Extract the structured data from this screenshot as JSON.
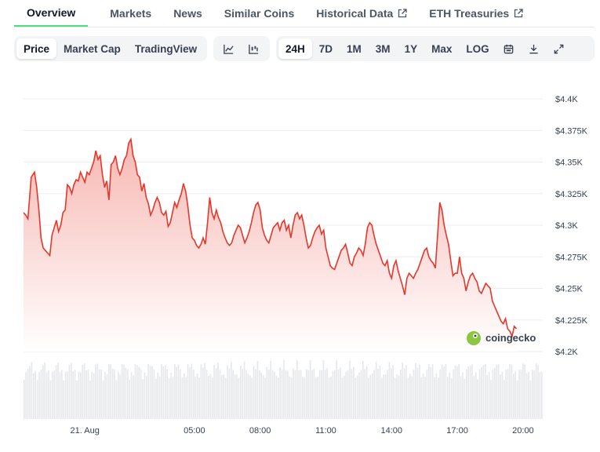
{
  "tabs": [
    {
      "label": "Overview",
      "active": true,
      "external": false
    },
    {
      "label": "Markets",
      "active": false,
      "external": false
    },
    {
      "label": "News",
      "active": false,
      "external": false
    },
    {
      "label": "Similar Coins",
      "active": false,
      "external": false
    },
    {
      "label": "Historical Data",
      "active": false,
      "external": true
    },
    {
      "label": "ETH Treasuries",
      "active": false,
      "external": true
    }
  ],
  "toolbar": {
    "view_buttons": [
      {
        "label": "Price",
        "selected": true
      },
      {
        "label": "Market Cap",
        "selected": false
      },
      {
        "label": "TradingView",
        "selected": false
      }
    ],
    "chart_type_icons": [
      "line-chart-icon",
      "candlestick-chart-icon"
    ],
    "range_buttons": [
      {
        "label": "24H",
        "selected": true
      },
      {
        "label": "7D",
        "selected": false
      },
      {
        "label": "1M",
        "selected": false
      },
      {
        "label": "3M",
        "selected": false
      },
      {
        "label": "1Y",
        "selected": false
      },
      {
        "label": "Max",
        "selected": false
      },
      {
        "label": "LOG",
        "selected": false
      }
    ],
    "action_icons": [
      "calendar-icon",
      "download-icon",
      "fullscreen-icon"
    ]
  },
  "watermark": "coingecko",
  "colors": {
    "line": "#e5372b",
    "fill_top": "#f7b7b2",
    "fill_bottom": "#ffffff",
    "volume": "#e5e7eb",
    "grid": "#eeeeee",
    "accent": "#4ade80"
  },
  "chart_data": {
    "type": "area",
    "x_unit": "hours since 21 Aug 00:00",
    "x_ticks": [
      {
        "x": 0,
        "label": "21. Aug"
      },
      {
        "x": 5,
        "label": "05:00"
      },
      {
        "x": 8,
        "label": "08:00"
      },
      {
        "x": 11,
        "label": "11:00"
      },
      {
        "x": 14,
        "label": "14:00"
      },
      {
        "x": 17,
        "label": "17:00"
      },
      {
        "x": 20,
        "label": "20:00"
      }
    ],
    "y_ticks": [
      {
        "v": 4400,
        "label": "$4.4K"
      },
      {
        "v": 4375,
        "label": "$4.375K"
      },
      {
        "v": 4350,
        "label": "$4.35K"
      },
      {
        "v": 4325,
        "label": "$4.325K"
      },
      {
        "v": 4300,
        "label": "$4.3K"
      },
      {
        "v": 4275,
        "label": "$4.275K"
      },
      {
        "v": 4250,
        "label": "$4.25K"
      },
      {
        "v": 4225,
        "label": "$4.225K"
      },
      {
        "v": 4200,
        "label": "$4.2K"
      }
    ],
    "ylim": [
      4200,
      4400
    ],
    "xlim": [
      -2.8,
      20.9
    ],
    "price": [
      [
        -2.8,
        4310
      ],
      [
        -2.7,
        4308
      ],
      [
        -2.6,
        4305
      ],
      [
        -2.45,
        4338
      ],
      [
        -2.3,
        4342
      ],
      [
        -2.2,
        4330
      ],
      [
        -2.1,
        4312
      ],
      [
        -2.0,
        4290
      ],
      [
        -1.9,
        4282
      ],
      [
        -1.8,
        4280
      ],
      [
        -1.7,
        4278
      ],
      [
        -1.6,
        4276
      ],
      [
        -1.5,
        4292
      ],
      [
        -1.4,
        4298
      ],
      [
        -1.3,
        4304
      ],
      [
        -1.2,
        4295
      ],
      [
        -1.1,
        4300
      ],
      [
        -1.0,
        4310
      ],
      [
        -0.9,
        4312
      ],
      [
        -0.8,
        4332
      ],
      [
        -0.7,
        4330
      ],
      [
        -0.6,
        4325
      ],
      [
        -0.5,
        4332
      ],
      [
        -0.4,
        4336
      ],
      [
        -0.3,
        4335
      ],
      [
        -0.2,
        4342
      ],
      [
        -0.1,
        4338
      ],
      [
        0.0,
        4334
      ],
      [
        0.1,
        4342
      ],
      [
        0.2,
        4340
      ],
      [
        0.3,
        4345
      ],
      [
        0.4,
        4350
      ],
      [
        0.5,
        4359
      ],
      [
        0.6,
        4352
      ],
      [
        0.7,
        4355
      ],
      [
        0.8,
        4340
      ],
      [
        0.9,
        4330
      ],
      [
        1.0,
        4335
      ],
      [
        1.1,
        4320
      ],
      [
        1.2,
        4348
      ],
      [
        1.3,
        4350
      ],
      [
        1.4,
        4355
      ],
      [
        1.5,
        4345
      ],
      [
        1.6,
        4340
      ],
      [
        1.7,
        4345
      ],
      [
        1.8,
        4352
      ],
      [
        1.9,
        4355
      ],
      [
        2.0,
        4365
      ],
      [
        2.1,
        4368
      ],
      [
        2.2,
        4355
      ],
      [
        2.3,
        4350
      ],
      [
        2.4,
        4340
      ],
      [
        2.5,
        4338
      ],
      [
        2.6,
        4327
      ],
      [
        2.7,
        4333
      ],
      [
        2.8,
        4322
      ],
      [
        2.9,
        4317
      ],
      [
        3.0,
        4308
      ],
      [
        3.1,
        4312
      ],
      [
        3.2,
        4318
      ],
      [
        3.3,
        4322
      ],
      [
        3.4,
        4318
      ],
      [
        3.5,
        4310
      ],
      [
        3.6,
        4308
      ],
      [
        3.7,
        4311
      ],
      [
        3.8,
        4299
      ],
      [
        3.9,
        4302
      ],
      [
        4.0,
        4310
      ],
      [
        4.1,
        4318
      ],
      [
        4.2,
        4314
      ],
      [
        4.3,
        4320
      ],
      [
        4.4,
        4325
      ],
      [
        4.5,
        4333
      ],
      [
        4.6,
        4327
      ],
      [
        4.7,
        4315
      ],
      [
        4.8,
        4300
      ],
      [
        4.9,
        4290
      ],
      [
        5.0,
        4288
      ],
      [
        5.1,
        4284
      ],
      [
        5.2,
        4282
      ],
      [
        5.3,
        4285
      ],
      [
        5.4,
        4290
      ],
      [
        5.5,
        4285
      ],
      [
        5.6,
        4302
      ],
      [
        5.7,
        4322
      ],
      [
        5.8,
        4310
      ],
      [
        5.9,
        4305
      ],
      [
        6.0,
        4312
      ],
      [
        6.1,
        4306
      ],
      [
        6.2,
        4302
      ],
      [
        6.3,
        4295
      ],
      [
        6.4,
        4290
      ],
      [
        6.5,
        4286
      ],
      [
        6.6,
        4284
      ],
      [
        6.7,
        4286
      ],
      [
        6.8,
        4292
      ],
      [
        6.9,
        4296
      ],
      [
        7.0,
        4300
      ],
      [
        7.1,
        4298
      ],
      [
        7.2,
        4292
      ],
      [
        7.3,
        4286
      ],
      [
        7.4,
        4290
      ],
      [
        7.5,
        4295
      ],
      [
        7.6,
        4302
      ],
      [
        7.7,
        4310
      ],
      [
        7.8,
        4316
      ],
      [
        7.9,
        4318
      ],
      [
        8.0,
        4312
      ],
      [
        8.1,
        4298
      ],
      [
        8.2,
        4292
      ],
      [
        8.3,
        4288
      ],
      [
        8.4,
        4286
      ],
      [
        8.5,
        4292
      ],
      [
        8.6,
        4298
      ],
      [
        8.7,
        4300
      ],
      [
        8.8,
        4302
      ],
      [
        8.9,
        4296
      ],
      [
        9.0,
        4302
      ],
      [
        9.1,
        4304
      ],
      [
        9.2,
        4296
      ],
      [
        9.3,
        4300
      ],
      [
        9.4,
        4290
      ],
      [
        9.5,
        4300
      ],
      [
        9.6,
        4308
      ],
      [
        9.7,
        4310
      ],
      [
        9.8,
        4305
      ],
      [
        9.9,
        4308
      ],
      [
        10.0,
        4300
      ],
      [
        10.1,
        4290
      ],
      [
        10.2,
        4282
      ],
      [
        10.3,
        4284
      ],
      [
        10.4,
        4290
      ],
      [
        10.5,
        4295
      ],
      [
        10.6,
        4298
      ],
      [
        10.7,
        4300
      ],
      [
        10.8,
        4293
      ],
      [
        10.9,
        4296
      ],
      [
        11.0,
        4282
      ],
      [
        11.1,
        4275
      ],
      [
        11.2,
        4268
      ],
      [
        11.3,
        4266
      ],
      [
        11.4,
        4265
      ],
      [
        11.5,
        4270
      ],
      [
        11.6,
        4275
      ],
      [
        11.7,
        4280
      ],
      [
        11.8,
        4282
      ],
      [
        11.9,
        4285
      ],
      [
        12.0,
        4278
      ],
      [
        12.1,
        4270
      ],
      [
        12.2,
        4268
      ],
      [
        12.3,
        4275
      ],
      [
        12.4,
        4278
      ],
      [
        12.5,
        4282
      ],
      [
        12.6,
        4280
      ],
      [
        12.7,
        4276
      ],
      [
        12.8,
        4285
      ],
      [
        12.9,
        4298
      ],
      [
        13.0,
        4302
      ],
      [
        13.1,
        4300
      ],
      [
        13.2,
        4292
      ],
      [
        13.3,
        4285
      ],
      [
        13.4,
        4280
      ],
      [
        13.5,
        4275
      ],
      [
        13.6,
        4270
      ],
      [
        13.7,
        4268
      ],
      [
        13.8,
        4272
      ],
      [
        13.9,
        4262
      ],
      [
        14.0,
        4258
      ],
      [
        14.1,
        4268
      ],
      [
        14.2,
        4272
      ],
      [
        14.3,
        4264
      ],
      [
        14.4,
        4258
      ],
      [
        14.5,
        4252
      ],
      [
        14.6,
        4245
      ],
      [
        14.7,
        4258
      ],
      [
        14.8,
        4262
      ],
      [
        14.9,
        4260
      ],
      [
        15.0,
        4258
      ],
      [
        15.1,
        4262
      ],
      [
        15.2,
        4265
      ],
      [
        15.3,
        4270
      ],
      [
        15.4,
        4275
      ],
      [
        15.5,
        4280
      ],
      [
        15.6,
        4282
      ],
      [
        15.7,
        4275
      ],
      [
        15.8,
        4272
      ],
      [
        15.9,
        4270
      ],
      [
        16.0,
        4266
      ],
      [
        16.1,
        4292
      ],
      [
        16.2,
        4318
      ],
      [
        16.3,
        4312
      ],
      [
        16.4,
        4300
      ],
      [
        16.5,
        4292
      ],
      [
        16.6,
        4285
      ],
      [
        16.7,
        4272
      ],
      [
        16.8,
        4260
      ],
      [
        16.9,
        4262
      ],
      [
        17.0,
        4262
      ],
      [
        17.1,
        4275
      ],
      [
        17.2,
        4262
      ],
      [
        17.3,
        4258
      ],
      [
        17.4,
        4248
      ],
      [
        17.5,
        4255
      ],
      [
        17.6,
        4260
      ],
      [
        17.7,
        4262
      ],
      [
        17.8,
        4258
      ],
      [
        17.9,
        4255
      ],
      [
        18.0,
        4248
      ],
      [
        18.1,
        4246
      ],
      [
        18.2,
        4250
      ],
      [
        18.3,
        4254
      ],
      [
        18.4,
        4252
      ],
      [
        18.5,
        4250
      ],
      [
        18.6,
        4240
      ],
      [
        18.7,
        4236
      ],
      [
        18.8,
        4232
      ],
      [
        18.9,
        4228
      ],
      [
        19.0,
        4224
      ],
      [
        19.1,
        4222
      ],
      [
        19.2,
        4226
      ],
      [
        19.3,
        4218
      ],
      [
        19.4,
        4216
      ],
      [
        19.5,
        4212
      ],
      [
        19.6,
        4220
      ],
      [
        19.7,
        4218
      ]
    ]
  }
}
